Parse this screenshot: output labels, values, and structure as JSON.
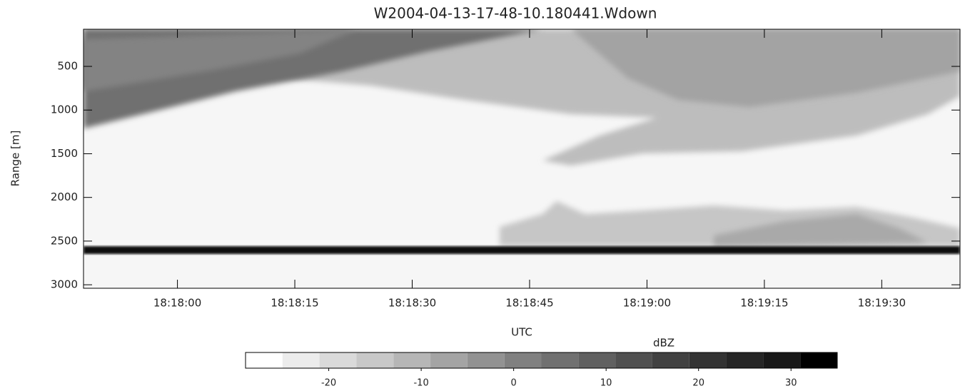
{
  "chart_data": {
    "type": "heatmap",
    "title": "W2004-04-13-17-48-10.180441.Wdown",
    "xlabel": "UTC",
    "ylabel": "Range [m]",
    "xlim": [
      65868,
      65980
    ],
    "xticks": [
      {
        "value": 65880,
        "label": "18:18:00"
      },
      {
        "value": 65895,
        "label": "18:18:15"
      },
      {
        "value": 65910,
        "label": "18:18:30"
      },
      {
        "value": 65925,
        "label": "18:18:45"
      },
      {
        "value": 65940,
        "label": "18:19:00"
      },
      {
        "value": 65955,
        "label": "18:19:15"
      },
      {
        "value": 65970,
        "label": "18:19:30"
      }
    ],
    "ylim": [
      3040,
      75
    ],
    "yticks": [
      500,
      1000,
      1500,
      2000,
      2500,
      3000
    ],
    "colorbar": {
      "label": "dBZ",
      "lim": [
        -29,
        35
      ],
      "ticks": [
        -20,
        -10,
        0,
        10,
        20,
        30
      ],
      "levels": [
        -29,
        -25,
        -21,
        -17,
        -13,
        -9,
        -5,
        -1,
        3,
        7,
        11,
        15,
        19,
        23,
        27,
        31,
        35
      ],
      "colors": [
        "#ffffff",
        "#ececec",
        "#dadada",
        "#c8c8c8",
        "#b6b6b6",
        "#a4a4a4",
        "#929292",
        "#808080",
        "#707070",
        "#606060",
        "#505050",
        "#414141",
        "#333333",
        "#252525",
        "#181818",
        "#000000"
      ]
    }
  }
}
